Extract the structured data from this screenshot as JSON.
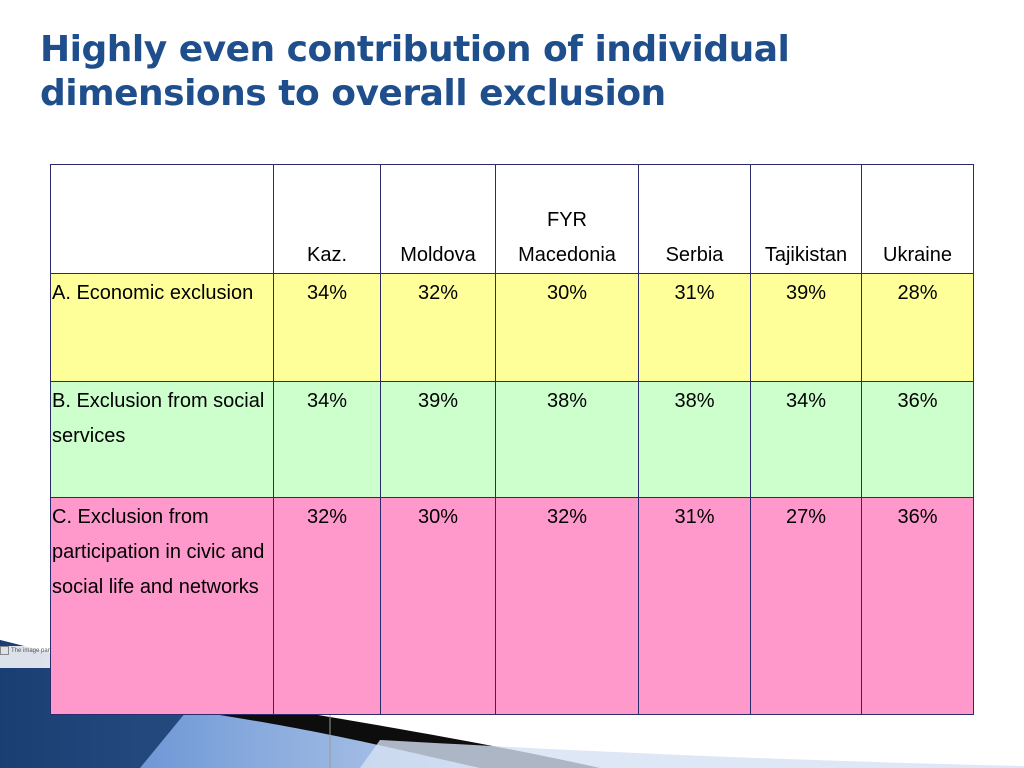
{
  "slide": {
    "title_line1": "Highly even contribution of individual",
    "title_line2": "dimensions to overall exclusion",
    "broken_image_text": "The image part"
  },
  "table": {
    "columns": [
      "",
      "Kaz.",
      "Moldova",
      "FYR Macedonia",
      "Serbia",
      "Tajikistan",
      "Ukraine"
    ],
    "header_fyr_line1": "FYR",
    "header_fyr_line2": "Macedonia",
    "rows": [
      {
        "label": "A. Economic exclusion",
        "values": [
          "34%",
          "32%",
          "30%",
          "31%",
          "39%",
          "28%"
        ],
        "color": "#ffff99"
      },
      {
        "label": "B. Exclusion from social services",
        "values": [
          "34%",
          "39%",
          "38%",
          "38%",
          "34%",
          "36%"
        ],
        "color": "#ccffcc"
      },
      {
        "label": "C. Exclusion from participation in civic and social life and networks",
        "values": [
          "32%",
          "30%",
          "32%",
          "31%",
          "27%",
          "36%"
        ],
        "color": "#ff99cc"
      }
    ]
  },
  "colors": {
    "title": "#1f4e8c",
    "border": "#2b2b6b",
    "swoosh_dark": "#1b3f73",
    "swoosh_light": "#7fa3d9"
  }
}
